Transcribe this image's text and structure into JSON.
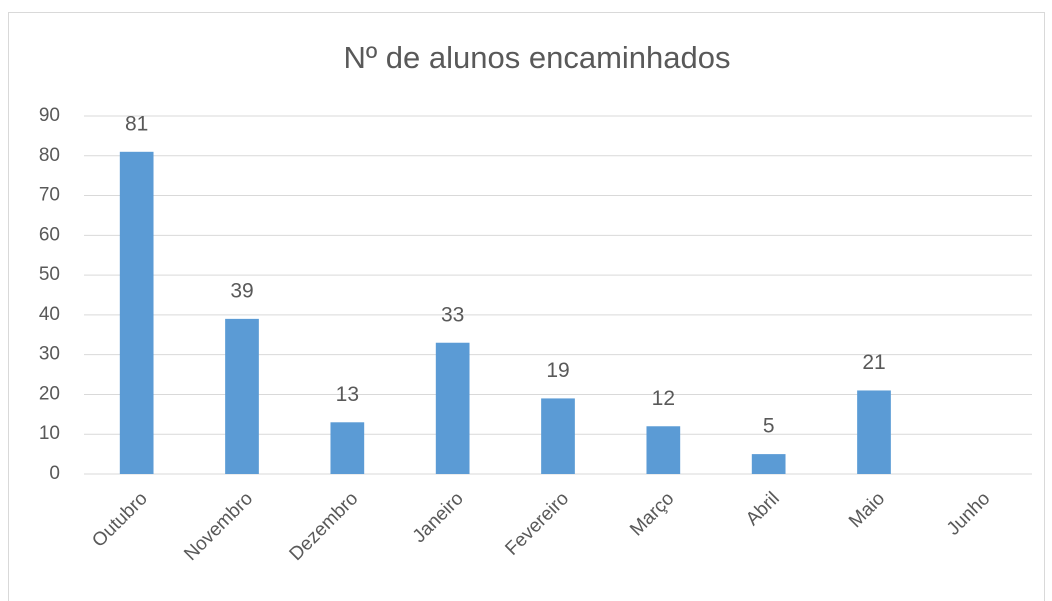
{
  "chart_data": {
    "type": "bar",
    "title": "Nº de alunos encaminhados",
    "categories": [
      "Outubro",
      "Novembro",
      "Dezembro",
      "Janeiro",
      "Fevereiro",
      "Março",
      "Abril",
      "Maio",
      "Junho"
    ],
    "values": [
      81,
      39,
      13,
      33,
      19,
      12,
      5,
      21,
      null
    ],
    "color": "#5b9bd5",
    "ylim": [
      0,
      90
    ],
    "yticks": [
      0,
      10,
      20,
      30,
      40,
      50,
      60,
      70,
      80,
      90
    ],
    "grid": true
  }
}
